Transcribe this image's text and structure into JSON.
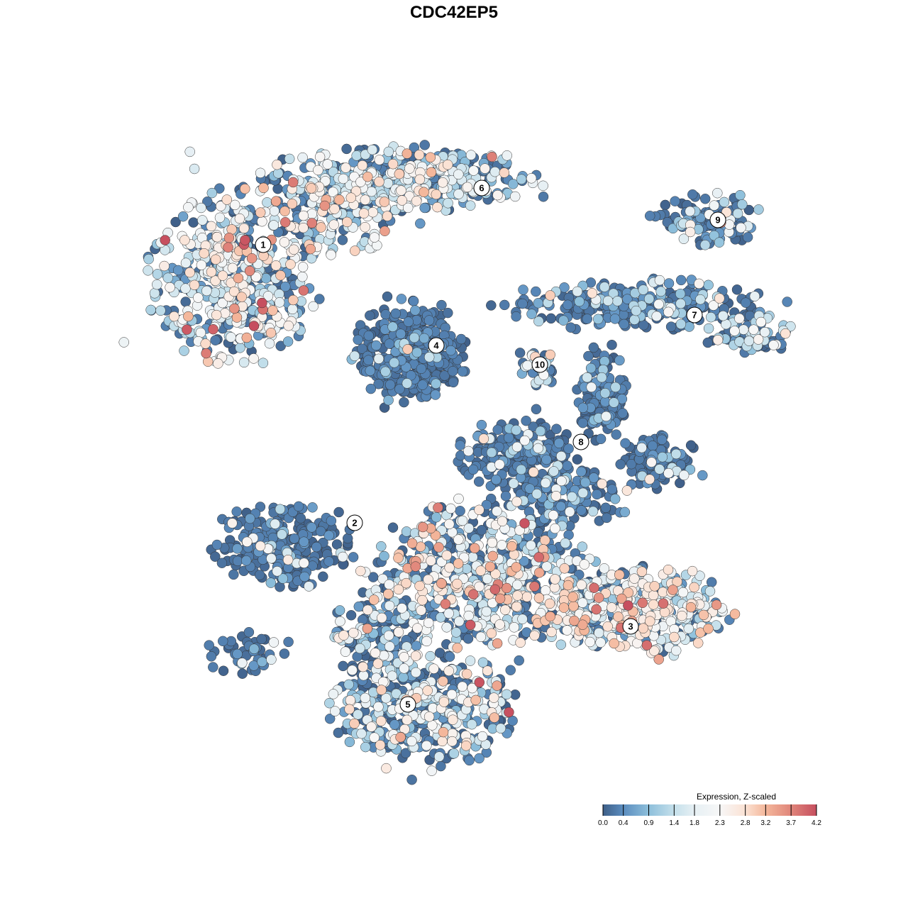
{
  "chart_data": {
    "type": "scatter",
    "title": "CDC42EP5",
    "cluster_labels": [
      "1",
      "2",
      "3",
      "4",
      "5",
      "6",
      "7",
      "8",
      "9",
      "10"
    ],
    "colorbar": {
      "title": "Expression, Z-scaled",
      "ticks": [
        "0.0",
        "0.4",
        "0.9",
        "1.4",
        "1.8",
        "2.3",
        "2.8",
        "3.2",
        "3.7",
        "4.2"
      ],
      "range": [
        0,
        4.2
      ],
      "colors": [
        "#3f5f88",
        "#5b8dbf",
        "#8dbfdb",
        "#c5e0eb",
        "#e7f0f4",
        "#f7f7f7",
        "#fbe2d4",
        "#f4b79b",
        "#e0857a",
        "#c64f5f"
      ]
    },
    "axes_visible": false,
    "grid": false,
    "legend_position": "bottom-right"
  }
}
